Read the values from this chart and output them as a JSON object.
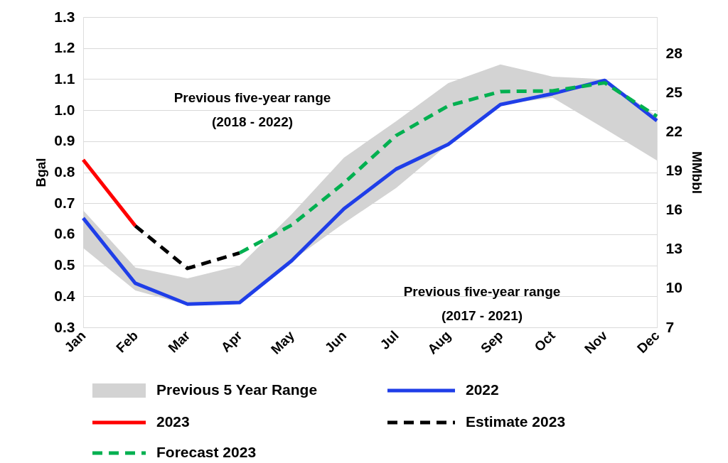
{
  "chart_data": {
    "type": "line",
    "categories": [
      "Jan",
      "Feb",
      "Mar",
      "Apr",
      "May",
      "Jun",
      "Jul",
      "Aug",
      "Sep",
      "Oct",
      "Nov",
      "Dec"
    ],
    "series": [
      {
        "name": "Previous 5 Year Range",
        "type": "area",
        "color": "#d3d3d3",
        "lower": [
          0.556,
          0.419,
          0.372,
          0.38,
          0.515,
          0.636,
          0.749,
          0.89,
          1.018,
          1.04,
          0.94,
          0.838
        ],
        "upper": [
          0.677,
          0.493,
          0.458,
          0.499,
          0.665,
          0.847,
          0.964,
          1.087,
          1.147,
          1.108,
          1.1,
          0.98
        ],
        "values": [
          null,
          null,
          null,
          null,
          null,
          null,
          null,
          null,
          null,
          null,
          null,
          null
        ]
      },
      {
        "name": "2022",
        "type": "line",
        "color": "#1f3ee8",
        "line_style": "solid",
        "values": [
          0.652,
          0.442,
          0.375,
          0.38,
          0.515,
          0.682,
          0.81,
          0.89,
          1.018,
          1.053,
          1.096,
          0.966
        ]
      },
      {
        "name": "2023",
        "type": "line",
        "color": "#ff0000",
        "line_style": "solid",
        "values": [
          0.84,
          0.627,
          null,
          null,
          null,
          null,
          null,
          null,
          null,
          null,
          null,
          null
        ]
      },
      {
        "name": "Estimate 2023",
        "type": "line",
        "color": "#000000",
        "line_style": "dashed",
        "values": [
          null,
          0.627,
          0.49,
          0.54,
          null,
          null,
          null,
          null,
          null,
          null,
          null,
          null
        ]
      },
      {
        "name": "Forecast 2023",
        "type": "line",
        "color": "#00b050",
        "line_style": "dashed",
        "values": [
          null,
          null,
          null,
          0.54,
          0.63,
          0.765,
          0.918,
          1.014,
          1.06,
          1.062,
          1.088,
          0.98
        ]
      }
    ],
    "ylabel": "Bgal",
    "y2label": "MMbbl",
    "ylim": [
      0.3,
      1.3
    ],
    "yticks": [
      0.3,
      {
        "value": 0.4,
        "label": "0.4"
      },
      {
        "value": 0.5,
        "label": "0.5"
      },
      {
        "value": 0.6,
        "label": "0.6"
      },
      {
        "value": 0.7,
        "label": "0.7"
      },
      {
        "value": 0.8,
        "label": "0.8"
      },
      {
        "value": 0.9,
        "label": "0.9"
      },
      {
        "value": 1.0,
        "label": "1.0"
      },
      {
        "value": 1.1,
        "label": "1.1"
      },
      {
        "value": 1.2,
        "label": "1.2"
      },
      {
        "value": 1.3,
        "label": "1.3"
      }
    ],
    "y2lim": [
      7,
      30.8
    ],
    "y2ticks": [
      7,
      10,
      13,
      16,
      19,
      22,
      25,
      28
    ],
    "grid": "y",
    "legend": "bottom",
    "annotations": [
      "Previous five-year range\n(2018 - 2022)",
      "Previous five-year range\n(2017 - 2021)"
    ]
  }
}
